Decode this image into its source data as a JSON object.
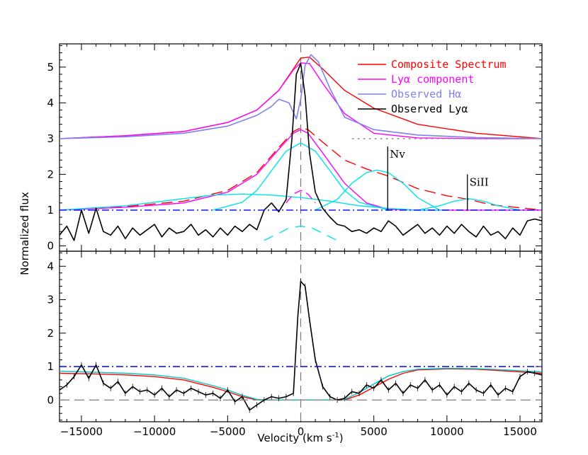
{
  "chart_data": [
    {
      "type": "line",
      "panel": "top",
      "xlabel": "Velocity (km s",
      "xlabel_sup": "-1",
      "xlabel_close": ")",
      "ylabel": "Normalized flux",
      "xlim": [
        -16500,
        16500
      ],
      "ylim": [
        -0.15,
        5.65
      ],
      "xticks": [
        -15000,
        -10000,
        -5000,
        0,
        5000,
        10000,
        15000
      ],
      "yticks": [
        0,
        1,
        2,
        3,
        4,
        5
      ],
      "legend": [
        {
          "text": "Composite Spectrum",
          "color": "#ff0000",
          "line": "Composite Spectrum"
        },
        {
          "text": "Lyα component",
          "color": "#ff00ff",
          "line": "Lyα component"
        },
        {
          "text": "Observed Hα",
          "color": "#8080ee",
          "line": "Observed Hα"
        },
        {
          "text": "Observed Lyα",
          "color": "#000000",
          "line": "Observed Lyα"
        }
      ],
      "annotations": [
        {
          "text": "Nv",
          "x": 5950,
          "y": 2.05,
          "line_top": 2.78
        },
        {
          "text": "SiII",
          "x": 11400,
          "y": 1.45,
          "line_top": 2.0
        }
      ],
      "series": [
        {
          "name": "Composite Spectrum (offset)",
          "color": "#ff0000",
          "x": [
            -16500,
            -12000,
            -8000,
            -5000,
            -3000,
            -1500,
            -500,
            0,
            600,
            1500,
            3000,
            5000,
            8000,
            12000,
            16500
          ],
          "y": [
            3.0,
            3.08,
            3.2,
            3.45,
            3.8,
            4.35,
            4.95,
            5.25,
            5.28,
            4.95,
            4.35,
            3.85,
            3.4,
            3.15,
            3.0
          ]
        },
        {
          "name": "Lyα component (offset)",
          "color": "#ff00ff",
          "x": [
            -16500,
            -12000,
            -8000,
            -5000,
            -3000,
            -1500,
            -500,
            0,
            600,
            1500,
            3000,
            5000,
            8000,
            12000,
            16500
          ],
          "y": [
            3.0,
            3.08,
            3.2,
            3.45,
            3.8,
            4.35,
            4.92,
            5.12,
            5.1,
            4.55,
            3.7,
            3.15,
            3.02,
            3.0,
            3.0
          ]
        },
        {
          "name": "Observed Hα (offset)",
          "color": "#8080ee",
          "x": [
            -16500,
            -12000,
            -8000,
            -5000,
            -3000,
            -2000,
            -1500,
            -800,
            -300,
            0,
            300,
            700,
            1200,
            2000,
            3000,
            5000,
            8000,
            12000,
            16500
          ],
          "y": [
            3.0,
            3.05,
            3.15,
            3.35,
            3.65,
            3.9,
            4.1,
            4.0,
            3.55,
            4.1,
            5.05,
            5.35,
            5.15,
            4.4,
            3.6,
            3.25,
            3.1,
            3.03,
            3.0
          ]
        },
        {
          "name": "Composite fit",
          "color": "#ff0000",
          "x": [
            -16500,
            -12000,
            -8000,
            -5000,
            -3000,
            -1500,
            -500,
            0,
            500,
            1500,
            3000,
            4500,
            6000,
            8000,
            10000,
            11500,
            13000,
            16500
          ],
          "y": [
            1.0,
            1.1,
            1.25,
            1.55,
            2.05,
            2.75,
            3.2,
            3.3,
            3.25,
            2.9,
            2.4,
            2.15,
            1.95,
            1.6,
            1.4,
            1.3,
            1.15,
            1.0
          ]
        },
        {
          "name": "Lyα component fit",
          "color": "#ff00ff",
          "x": [
            -16500,
            -12000,
            -8000,
            -5000,
            -3000,
            -1500,
            -500,
            0,
            500,
            1500,
            3000,
            4500,
            6000,
            8000,
            16500
          ],
          "y": [
            1.0,
            1.08,
            1.2,
            1.5,
            2.0,
            2.7,
            3.15,
            3.25,
            3.15,
            2.6,
            1.75,
            1.2,
            1.02,
            1.0,
            1.0
          ]
        },
        {
          "name": "Gaussian broad",
          "color": "#00e5e5",
          "x": [
            -16500,
            -12000,
            -8000,
            -6000,
            -4000,
            -2000,
            0,
            2000,
            4000,
            6000,
            8000,
            10000
          ],
          "y": [
            1.0,
            1.12,
            1.32,
            1.42,
            1.45,
            1.42,
            1.35,
            1.25,
            1.12,
            1.05,
            1.0,
            1.0
          ]
        },
        {
          "name": "Gaussian core",
          "color": "#00e5e5",
          "x": [
            -6000,
            -4000,
            -3000,
            -2000,
            -1000,
            0,
            1000,
            2000,
            3000,
            4000,
            6000
          ],
          "y": [
            1.0,
            1.22,
            1.55,
            2.1,
            2.65,
            2.88,
            2.65,
            2.1,
            1.55,
            1.22,
            1.0
          ]
        },
        {
          "name": "Gaussian Nv",
          "color": "#00e5e5",
          "x": [
            1000,
            2500,
            3500,
            4500,
            5200,
            6000,
            7000,
            8000,
            9500
          ],
          "y": [
            1.0,
            1.3,
            1.75,
            2.05,
            2.12,
            2.05,
            1.75,
            1.35,
            1.0
          ]
        },
        {
          "name": "Gaussian SiII",
          "color": "#00e5e5",
          "x": [
            8000,
            9500,
            10500,
            11500,
            12500,
            13500,
            15000
          ],
          "y": [
            1.0,
            1.12,
            1.25,
            1.32,
            1.25,
            1.12,
            1.0
          ]
        },
        {
          "name": "Narrow Lyα",
          "color": "#ff00ff",
          "x": [
            -1000,
            -500,
            0,
            500,
            1000
          ],
          "y": [
            1.2,
            1.45,
            1.55,
            1.45,
            1.2
          ]
        },
        {
          "name": "Residual narrow",
          "color": "#00e5e5",
          "x": [
            -2500,
            -1500,
            -800,
            0,
            800,
            1500,
            2500
          ],
          "y": [
            0.15,
            0.35,
            0.5,
            0.55,
            0.5,
            0.35,
            0.15
          ]
        },
        {
          "name": "Observed Lyα",
          "color": "#000000",
          "x": [
            -16500,
            -16000,
            -15500,
            -15000,
            -14500,
            -14000,
            -13500,
            -13000,
            -12500,
            -12000,
            -11500,
            -11000,
            -10500,
            -10000,
            -9500,
            -9000,
            -8500,
            -8000,
            -7500,
            -7000,
            -6500,
            -6000,
            -5500,
            -5000,
            -4500,
            -4000,
            -3500,
            -3000,
            -2500,
            -2000,
            -1500,
            -1000,
            -600,
            -300,
            0,
            300,
            600,
            1000,
            1500,
            2000,
            2500,
            3000,
            3500,
            4000,
            4500,
            5000,
            5500,
            6000,
            6500,
            7000,
            7500,
            8000,
            8500,
            9000,
            9500,
            10000,
            10500,
            11000,
            11500,
            12000,
            12500,
            13000,
            13500,
            14000,
            14500,
            15000,
            15500,
            16000,
            16500
          ],
          "y": [
            0.3,
            0.55,
            0.15,
            1.0,
            0.35,
            1.05,
            0.4,
            0.3,
            0.55,
            0.2,
            0.5,
            0.3,
            0.45,
            0.6,
            0.25,
            0.5,
            0.35,
            0.4,
            0.6,
            0.3,
            0.45,
            0.25,
            0.5,
            0.3,
            0.55,
            0.4,
            0.6,
            0.45,
            1.0,
            1.2,
            0.95,
            1.3,
            3.0,
            4.8,
            5.1,
            4.2,
            2.6,
            1.5,
            1.05,
            0.8,
            0.6,
            0.55,
            0.4,
            0.45,
            0.35,
            0.5,
            0.4,
            0.7,
            0.55,
            0.3,
            0.45,
            0.6,
            0.35,
            0.5,
            0.3,
            0.55,
            0.35,
            0.6,
            0.4,
            0.25,
            0.55,
            0.3,
            0.4,
            0.2,
            0.5,
            0.3,
            0.7,
            0.75,
            0.7
          ]
        },
        {
          "name": "Continuum",
          "color": "#0000ff",
          "x": [
            -16500,
            16500
          ],
          "y": [
            1.0,
            1.0
          ]
        },
        {
          "name": "Reference level",
          "color": "#888888",
          "x": [
            3500,
            16500
          ],
          "y": [
            3.0,
            3.0
          ]
        }
      ]
    },
    {
      "type": "line",
      "panel": "bottom",
      "xlim": [
        -16500,
        16500
      ],
      "ylim": [
        -0.65,
        4.45
      ],
      "xticks": [
        -15000,
        -10000,
        -5000,
        0,
        5000,
        10000,
        15000
      ],
      "yticks": [
        0,
        1,
        2,
        3,
        4
      ],
      "xticklabels": [
        "−15000",
        "−10000",
        "−5000",
        "0",
        "5000",
        "10000",
        "15000"
      ],
      "series": [
        {
          "name": "Model red",
          "color": "#ff0000",
          "x": [
            -16500,
            -14000,
            -12000,
            -10000,
            -8000,
            -6000,
            -5000,
            -4000,
            -3000,
            -2000,
            2000,
            3000,
            4000,
            5000,
            6000,
            7000,
            8000,
            10000,
            12000,
            14000,
            16500
          ],
          "y": [
            0.8,
            0.78,
            0.75,
            0.7,
            0.6,
            0.38,
            0.25,
            0.1,
            0.0,
            0.0,
            0.0,
            0.0,
            0.15,
            0.38,
            0.62,
            0.8,
            0.9,
            0.93,
            0.92,
            0.87,
            0.8
          ]
        },
        {
          "name": "Model cyan",
          "color": "#00c5c5",
          "x": [
            -16500,
            -14000,
            -12000,
            -10000,
            -8000,
            -6000,
            -5000,
            -4000,
            -3000,
            -2000,
            2000,
            3000,
            4000,
            5000,
            6000,
            7000,
            8000,
            10000,
            12000,
            14000,
            16500
          ],
          "y": [
            0.86,
            0.83,
            0.8,
            0.75,
            0.65,
            0.43,
            0.3,
            0.14,
            0.02,
            0.0,
            0.0,
            0.02,
            0.22,
            0.48,
            0.72,
            0.85,
            0.92,
            0.95,
            0.94,
            0.9,
            0.84
          ]
        },
        {
          "name": "Observed normalized",
          "color": "#000000",
          "x": [
            -16500,
            -16000,
            -15500,
            -15000,
            -14500,
            -14000,
            -13500,
            -13000,
            -12500,
            -12000,
            -11500,
            -11000,
            -10500,
            -10000,
            -9500,
            -9000,
            -8500,
            -8000,
            -7500,
            -7000,
            -6500,
            -6000,
            -5500,
            -5000,
            -4500,
            -4000,
            -3500,
            -3000,
            -2500,
            -2000,
            -1500,
            -1000,
            -500,
            -200,
            0,
            300,
            600,
            1000,
            1500,
            2000,
            2500,
            3000,
            3500,
            4000,
            4500,
            5000,
            5500,
            6000,
            6500,
            7000,
            7500,
            8000,
            8500,
            9000,
            9500,
            10000,
            10500,
            11000,
            11500,
            12000,
            12500,
            13000,
            13500,
            14000,
            14500,
            15000,
            15500,
            16000,
            16500
          ],
          "y": [
            0.3,
            0.45,
            0.7,
            1.05,
            0.65,
            1.05,
            0.5,
            0.35,
            0.55,
            0.2,
            0.4,
            0.25,
            0.3,
            0.15,
            0.35,
            0.1,
            0.3,
            0.2,
            0.35,
            0.25,
            0.15,
            0.2,
            0.05,
            0.3,
            -0.05,
            0.1,
            -0.3,
            -0.15,
            0.0,
            0.1,
            0.05,
            0.1,
            0.2,
            2.5,
            3.55,
            3.4,
            2.4,
            1.2,
            0.4,
            0.1,
            0.0,
            0.05,
            0.25,
            0.2,
            0.45,
            0.35,
            0.6,
            0.3,
            0.5,
            0.2,
            0.45,
            0.35,
            0.6,
            0.3,
            0.45,
            0.15,
            0.4,
            0.25,
            0.5,
            0.3,
            0.2,
            0.45,
            0.15,
            0.35,
            0.25,
            0.7,
            0.85,
            0.8,
            0.75
          ]
        },
        {
          "name": "Continuum",
          "color": "#0000ff",
          "x": [
            -16500,
            16500
          ],
          "y": [
            1.0,
            1.0
          ]
        },
        {
          "name": "Zero level",
          "color": "#888888",
          "x": [
            -16500,
            16500
          ],
          "y": [
            0.0,
            0.0
          ]
        }
      ]
    }
  ]
}
